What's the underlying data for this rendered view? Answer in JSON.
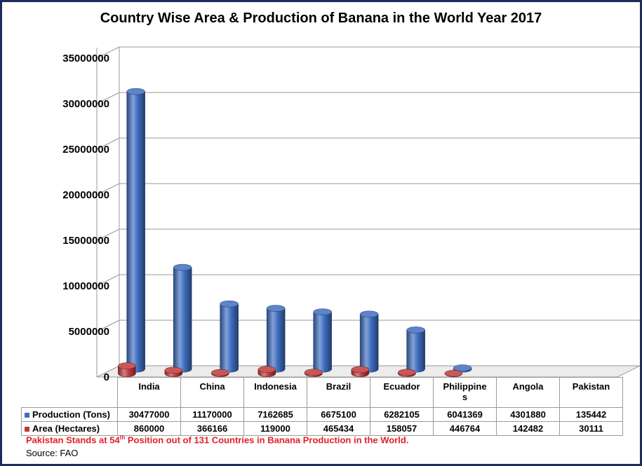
{
  "title": "Country Wise Area & Production of Banana in the World Year 2017",
  "note": {
    "before": "Pakistan Stands at 54",
    "sup": "th",
    "after": " Position out of 131 Countries in Banana Production in the World.",
    "color": "#e0202a"
  },
  "source": "Source: FAO",
  "chart_data": {
    "type": "bar",
    "style": "3d-cylinder",
    "title": "Country Wise Area & Production of Banana in the World Year 2017",
    "categories": [
      "India",
      "China",
      "Indonesia",
      "Brazil",
      "Ecuador",
      "Philippines",
      "Angola",
      "Pakistan"
    ],
    "category_labels": [
      [
        "India"
      ],
      [
        "China"
      ],
      [
        "Indonesia"
      ],
      [
        "Brazil"
      ],
      [
        "Ecuador"
      ],
      [
        "Philippine",
        "s"
      ],
      [
        "Angola"
      ],
      [
        "Pakistan"
      ]
    ],
    "series": [
      {
        "name": "Production (Tons)",
        "color": "#3e6ec1",
        "values": [
          30477000,
          11170000,
          7162685,
          6675100,
          6282105,
          6041369,
          4301880,
          135442
        ]
      },
      {
        "name": "Area (Hectares)",
        "color": "#c0393b",
        "values": [
          860000,
          366166,
          119000,
          465434,
          158057,
          446764,
          142482,
          30111
        ]
      }
    ],
    "yticks": [
      "0",
      "5000000",
      "10000000",
      "15000000",
      "20000000",
      "25000000",
      "30000000",
      "35000000"
    ],
    "ylim": [
      0,
      35000000
    ],
    "grid": true,
    "legend": "data-table"
  }
}
